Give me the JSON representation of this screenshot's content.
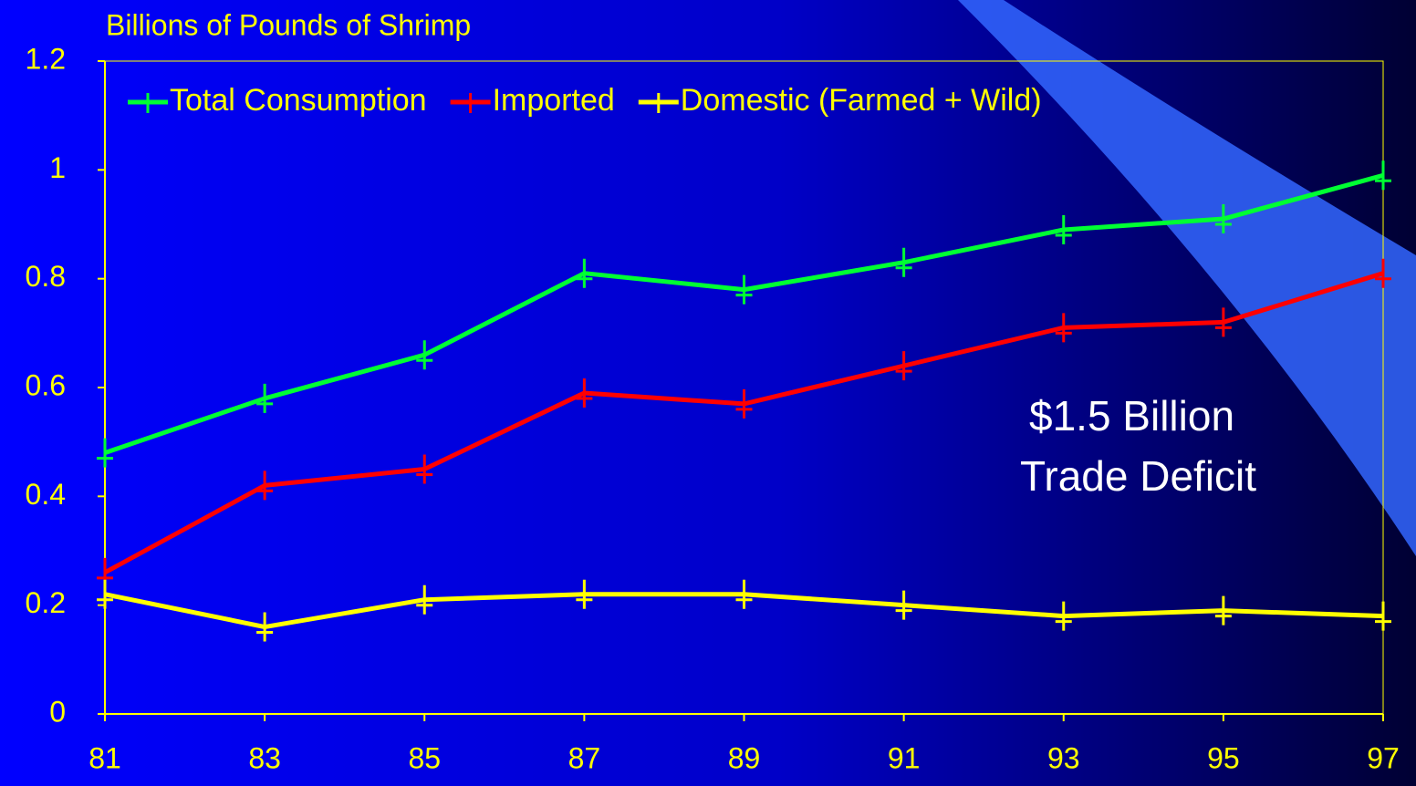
{
  "chart_data": {
    "type": "line",
    "title": "Billions of Pounds of Shrimp",
    "annotation": [
      "$1.5 Billion",
      "Trade Deficit"
    ],
    "x": [
      81,
      83,
      85,
      87,
      89,
      91,
      93,
      95,
      97
    ],
    "xlim": [
      81,
      97
    ],
    "xticks": [
      81,
      83,
      85,
      87,
      89,
      91,
      93,
      95,
      97
    ],
    "ylim": [
      0,
      1.2
    ],
    "yticks": [
      0,
      0.2,
      0.4,
      0.6,
      0.8,
      1,
      1.2
    ],
    "legend": "top-left",
    "series": [
      {
        "name": "Total Consumption",
        "color": "#00ff33",
        "values": [
          0.48,
          0.58,
          0.66,
          0.81,
          0.78,
          0.83,
          0.89,
          0.91,
          0.99
        ]
      },
      {
        "name": "Imported",
        "color": "#ff0000",
        "values": [
          0.26,
          0.42,
          0.45,
          0.59,
          0.57,
          0.64,
          0.71,
          0.72,
          0.81
        ]
      },
      {
        "name": "Domestic (Farmed + Wild)",
        "color": "#ffff00",
        "values": [
          0.22,
          0.16,
          0.21,
          0.22,
          0.22,
          0.2,
          0.18,
          0.19,
          0.18
        ]
      }
    ]
  }
}
